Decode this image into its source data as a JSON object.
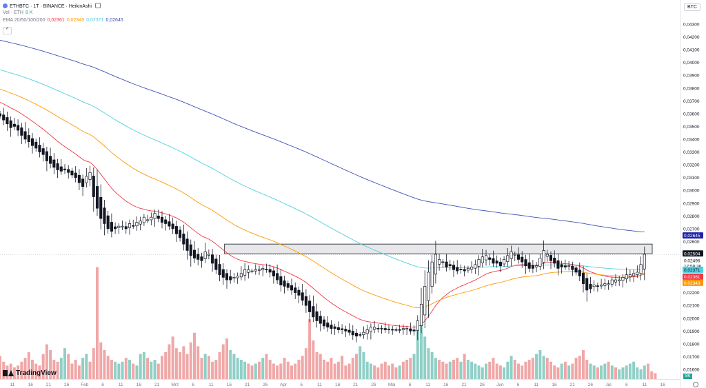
{
  "header": {
    "symbol": "ETHBTC · 1T · BINANCE · HeikinAshi",
    "vol_label": "Vol · ETH",
    "vol_value": "8 K",
    "ema_label": "EMA 20/50/100/200",
    "ema_values": [
      {
        "value": "0,02361",
        "color": "#f23645"
      },
      {
        "value": "0,02343",
        "color": "#ff9800"
      },
      {
        "value": "0,02371",
        "color": "#4dd0e1"
      },
      {
        "value": "0,02645",
        "color": "#3f51b5"
      }
    ]
  },
  "collapse_label": "^",
  "currency_label": "BTC",
  "logo_text": "TradingView",
  "volume_badge": "8K",
  "price_labels": [
    {
      "value": "0,02645",
      "bg": "#1e22aa",
      "fg": "#ffffff"
    },
    {
      "value": "0,02504",
      "bg": "#131722",
      "fg": "#ffffff"
    },
    {
      "value": "0,02496",
      "bg": "#ffffff",
      "fg": "#131722"
    },
    {
      "value": "17:59:36",
      "bg": "#ffffff",
      "fg": "#131722"
    },
    {
      "value": "0,02371",
      "bg": "#4dd0e1",
      "fg": "#131722"
    },
    {
      "value": "0,02361",
      "bg": "#f23645",
      "fg": "#ffffff"
    },
    {
      "value": "0,02343",
      "bg": "#ff9800",
      "fg": "#ffffff"
    }
  ],
  "chart_data": {
    "type": "candlestick",
    "ylim": [
      0.016,
      0.0437
    ],
    "y_ticks": [
      "0,04300",
      "0,04200",
      "0,04100",
      "0,04000",
      "0,03900",
      "0,03800",
      "0,03700",
      "0,03600",
      "0,03500",
      "0,03400",
      "0,03300",
      "0,03200",
      "0,03100",
      "0,03000",
      "0,02900",
      "0,02800",
      "0,02700",
      "0,02600",
      "0,02500",
      "0,02400",
      "0,02300",
      "0,02200",
      "0,02100",
      "0,02000",
      "0,01900",
      "0,01800",
      "0,01700",
      "0,01600"
    ],
    "x_ticks": [
      "11",
      "16",
      "21",
      "26",
      "Feb",
      "6",
      "11",
      "16",
      "21",
      "Mrz",
      "6",
      "11",
      "16",
      "21",
      "26",
      "Apr",
      "6",
      "11",
      "16",
      "21",
      "26",
      "Mai",
      "6",
      "11",
      "16",
      "21",
      "26",
      "Jun",
      "6",
      "11",
      "16",
      "21",
      "26",
      "Jul",
      "6",
      "11",
      "16"
    ],
    "n_days": 181,
    "resistance_zone": {
      "from_day": 57,
      "to_day": 181,
      "low": 0.02504,
      "high": 0.0258
    },
    "closes": [
      0.0358,
      0.0355,
      0.0352,
      0.0349,
      0.035,
      0.0347,
      0.0343,
      0.034,
      0.0338,
      0.0335,
      0.0333,
      0.033,
      0.0328,
      0.0323,
      0.0321,
      0.0318,
      0.0316,
      0.0315,
      0.0316,
      0.0314,
      0.0312,
      0.031,
      0.0306,
      0.0303,
      0.0311,
      0.0314,
      0.0295,
      0.0286,
      0.0278,
      0.0274,
      0.027,
      0.0268,
      0.027,
      0.0272,
      0.0272,
      0.027,
      0.0274,
      0.0272,
      0.0275,
      0.0276,
      0.0279,
      0.0277,
      0.0279,
      0.0282,
      0.0278,
      0.0275,
      0.0274,
      0.0272,
      0.027,
      0.0266,
      0.0263,
      0.0258,
      0.0253,
      0.0249,
      0.0247,
      0.0246,
      0.0245,
      0.0252,
      0.025,
      0.0243,
      0.0238,
      0.0234,
      0.0232,
      0.023,
      0.023,
      0.0232,
      0.0233,
      0.0235,
      0.0238,
      0.0238,
      0.0237,
      0.0238,
      0.0238,
      0.0239,
      0.0238,
      0.0236,
      0.0233,
      0.023,
      0.0226,
      0.0225,
      0.0224,
      0.0222,
      0.022,
      0.0218,
      0.0214,
      0.021,
      0.0205,
      0.0201,
      0.0198,
      0.0196,
      0.0194,
      0.0193,
      0.0192,
      0.0192,
      0.0191,
      0.0191,
      0.019,
      0.0189,
      0.0187,
      0.0186,
      0.0187,
      0.0189,
      0.0191,
      0.0193,
      0.0193,
      0.0192,
      0.0192,
      0.0191,
      0.0191,
      0.0191,
      0.0191,
      0.0191,
      0.0192,
      0.0192,
      0.019,
      0.019,
      0.0198,
      0.0211,
      0.0225,
      0.0236,
      0.0244,
      0.025,
      0.0246,
      0.0244,
      0.024,
      0.0241,
      0.0238,
      0.0237,
      0.0238,
      0.0237,
      0.0239,
      0.024,
      0.0242,
      0.0246,
      0.0248,
      0.0249,
      0.0246,
      0.0243,
      0.0243,
      0.0241,
      0.0246,
      0.0249,
      0.0252,
      0.025,
      0.0246,
      0.0244,
      0.0241,
      0.0239,
      0.0239,
      0.0241,
      0.0247,
      0.0253,
      0.025,
      0.0245,
      0.0243,
      0.0239,
      0.024,
      0.024,
      0.0241,
      0.0238,
      0.0236,
      0.0233,
      0.0227,
      0.0222,
      0.0223,
      0.0226,
      0.0225,
      0.0226,
      0.0227,
      0.0227,
      0.023,
      0.023,
      0.023,
      0.0232,
      0.0234,
      0.0234,
      0.0235,
      0.0236,
      0.0242,
      0.025
    ],
    "volumes": [
      1.2,
      0.9,
      0.7,
      0.8,
      0.6,
      0.7,
      0.9,
      1.1,
      1.4,
      1.0,
      0.8,
      0.7,
      1.3,
      1.8,
      1.5,
      1.0,
      0.9,
      1.1,
      1.6,
      1.3,
      0.8,
      1.0,
      0.7,
      1.1,
      1.3,
      0.9,
      1.6,
      5.8,
      1.9,
      1.5,
      1.2,
      1.0,
      0.9,
      0.8,
      0.9,
      1.1,
      1.0,
      0.8,
      0.7,
      1.3,
      1.4,
      1.1,
      0.9,
      1.0,
      0.8,
      1.2,
      1.4,
      1.8,
      2.2,
      1.6,
      1.4,
      1.7,
      1.3,
      1.9,
      2.4,
      1.7,
      1.1,
      1.3,
      1.2,
      0.9,
      1.0,
      1.4,
      1.8,
      2.1,
      1.5,
      1.3,
      1.1,
      1.0,
      0.9,
      0.8,
      0.7,
      0.8,
      0.9,
      1.1,
      1.3,
      1.0,
      0.8,
      0.7,
      0.8,
      1.1,
      0.9,
      0.7,
      0.8,
      1.0,
      1.2,
      1.6,
      3.1,
      2.0,
      1.4,
      1.3,
      1.0,
      0.9,
      1.1,
      0.8,
      0.9,
      1.2,
      0.7,
      0.8,
      1.1,
      1.3,
      1.7,
      1.4,
      0.9,
      0.8,
      0.7,
      0.6,
      0.8,
      0.9,
      0.7,
      0.8,
      0.6,
      0.7,
      0.9,
      1.0,
      1.1,
      1.3,
      2.6,
      3.2,
      2.2,
      1.6,
      1.4,
      1.1,
      1.0,
      0.9,
      0.8,
      0.9,
      1.0,
      1.1,
      0.9,
      1.3,
      1.0,
      0.9,
      0.8,
      0.7,
      0.6,
      0.8,
      0.9,
      1.1,
      0.8,
      0.7,
      0.6,
      0.9,
      1.2,
      1.0,
      0.8,
      0.7,
      0.9,
      1.0,
      1.1,
      1.3,
      1.5,
      1.2,
      1.1,
      0.9,
      0.7,
      0.6,
      0.8,
      0.9,
      0.7,
      0.8,
      1.1,
      1.2,
      1.5,
      1.0,
      0.8,
      0.7,
      0.6,
      0.7,
      0.8,
      0.9,
      0.7,
      0.6,
      0.5,
      0.6,
      0.7,
      0.8,
      0.9,
      0.6,
      0.5,
      0.7,
      0.8,
      0.4,
      0.3
    ],
    "vol_up": [
      0,
      0,
      0,
      0,
      0,
      0,
      0,
      0,
      0,
      0,
      0,
      0,
      0,
      0,
      0,
      0,
      0,
      1,
      1,
      0,
      0,
      0,
      0,
      1,
      1,
      0,
      0,
      0,
      0,
      0,
      0,
      0,
      1,
      1,
      1,
      0,
      1,
      0,
      1,
      1,
      1,
      0,
      1,
      1,
      0,
      0,
      0,
      0,
      0,
      0,
      0,
      0,
      0,
      0,
      0,
      0,
      0,
      1,
      0,
      0,
      0,
      0,
      0,
      0,
      1,
      1,
      1,
      1,
      1,
      0,
      0,
      1,
      0,
      1,
      0,
      0,
      0,
      0,
      0,
      0,
      0,
      0,
      0,
      0,
      0,
      0,
      0,
      0,
      0,
      0,
      0,
      0,
      0,
      0,
      0,
      0,
      0,
      0,
      0,
      0,
      1,
      1,
      1,
      1,
      0,
      0,
      0,
      0,
      0,
      0,
      0,
      1,
      0,
      0,
      0,
      1,
      1,
      1,
      1,
      1,
      1,
      1,
      0,
      0,
      0,
      1,
      0,
      0,
      1,
      0,
      1,
      1,
      1,
      1,
      1,
      1,
      0,
      0,
      0,
      0,
      1,
      1,
      1,
      0,
      0,
      0,
      0,
      0,
      0,
      1,
      1,
      1,
      0,
      0,
      0,
      0,
      1,
      0,
      1,
      0,
      0,
      0,
      0,
      0,
      1,
      1,
      0,
      1,
      1,
      0,
      1,
      0,
      1,
      1,
      1,
      1,
      1,
      1,
      1,
      1
    ]
  }
}
